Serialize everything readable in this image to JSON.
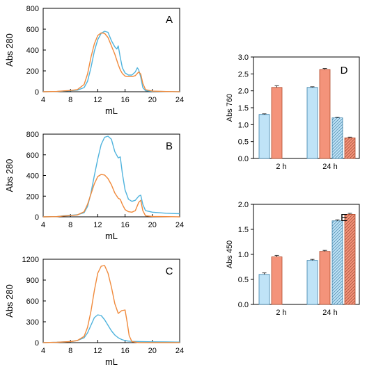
{
  "colors": {
    "blue": "#4fb3dd",
    "orange": "#f08a3c",
    "bar_blue": "#bfe3f7",
    "bar_orange": "#f4937a",
    "axis": "#000000",
    "grid": "#000000"
  },
  "chart_data": [
    {
      "id": "A",
      "type": "line",
      "panel_label": "A",
      "xlabel": "mL",
      "ylabel": "Abs 280",
      "xlim": [
        4,
        24
      ],
      "ylim": [
        0,
        800
      ],
      "xticks": [
        4,
        8,
        12,
        16,
        20,
        24
      ],
      "yticks": [
        0,
        200,
        400,
        600,
        800
      ],
      "series": [
        {
          "color": "blue",
          "x": [
            4,
            6,
            7,
            8,
            9,
            10,
            10.5,
            11,
            11.5,
            12,
            12.5,
            13,
            13.5,
            14,
            14.5,
            14.8,
            15,
            15.3,
            15.6,
            16,
            16.5,
            17,
            17.5,
            17.8,
            18,
            18.3,
            18.6,
            19,
            20,
            22,
            24
          ],
          "y": [
            0,
            2,
            6,
            10,
            15,
            40,
            100,
            230,
            390,
            500,
            560,
            580,
            570,
            490,
            430,
            410,
            440,
            330,
            230,
            180,
            160,
            160,
            190,
            230,
            210,
            140,
            40,
            10,
            4,
            2,
            0
          ]
        },
        {
          "color": "orange",
          "x": [
            4,
            6,
            7,
            8,
            9,
            10,
            10.5,
            11,
            11.5,
            12,
            12.5,
            13,
            13.5,
            14,
            14.5,
            15,
            15.3,
            15.6,
            16,
            16.5,
            17,
            17.5,
            18,
            18.3,
            18.6,
            19,
            20,
            22,
            24
          ],
          "y": [
            0,
            3,
            8,
            12,
            20,
            70,
            170,
            330,
            460,
            540,
            565,
            560,
            520,
            440,
            360,
            260,
            210,
            175,
            150,
            145,
            145,
            155,
            190,
            170,
            80,
            20,
            6,
            2,
            0
          ]
        }
      ]
    },
    {
      "id": "B",
      "type": "line",
      "panel_label": "B",
      "xlabel": "mL",
      "ylabel": "Abs 280",
      "xlim": [
        4,
        24
      ],
      "ylim": [
        0,
        800
      ],
      "xticks": [
        4,
        8,
        12,
        16,
        20,
        24
      ],
      "yticks": [
        0,
        200,
        400,
        600,
        800
      ],
      "series": [
        {
          "color": "blue",
          "x": [
            4,
            6,
            7,
            8,
            9,
            10,
            10.5,
            11,
            11.5,
            12,
            12.5,
            13,
            13.5,
            14,
            14.5,
            15,
            15.3,
            15.6,
            16,
            16.5,
            17,
            17.5,
            18,
            18.3,
            18.6,
            19,
            20,
            22,
            24
          ],
          "y": [
            0,
            2,
            10,
            15,
            20,
            40,
            100,
            230,
            400,
            560,
            700,
            770,
            780,
            750,
            630,
            570,
            580,
            420,
            260,
            170,
            150,
            160,
            200,
            210,
            120,
            60,
            45,
            35,
            30
          ]
        },
        {
          "color": "orange",
          "x": [
            4,
            6,
            7,
            8,
            9,
            10,
            10.5,
            11,
            11.5,
            12,
            12.5,
            13,
            13.5,
            14,
            14.5,
            15,
            15.3,
            15.6,
            16,
            16.5,
            17,
            17.5,
            18,
            18.3,
            18.6,
            19,
            20,
            22,
            24
          ],
          "y": [
            0,
            2,
            8,
            12,
            18,
            50,
            120,
            220,
            320,
            390,
            410,
            405,
            370,
            310,
            230,
            180,
            170,
            120,
            70,
            50,
            45,
            60,
            140,
            160,
            60,
            10,
            4,
            2,
            0
          ]
        }
      ]
    },
    {
      "id": "C",
      "type": "line",
      "panel_label": "C",
      "xlabel": "mL",
      "ylabel": "Abs 280",
      "xlim": [
        4,
        24
      ],
      "ylim": [
        0,
        1200
      ],
      "xticks": [
        4,
        8,
        12,
        16,
        20,
        24
      ],
      "yticks": [
        0,
        300,
        600,
        900,
        1200
      ],
      "series": [
        {
          "color": "blue",
          "x": [
            4,
            6,
            8,
            9,
            10,
            10.5,
            11,
            11.5,
            12,
            12.5,
            13,
            13.5,
            14,
            14.5,
            15,
            15.5,
            16,
            16.5,
            17,
            18,
            20,
            22,
            24
          ],
          "y": [
            0,
            5,
            15,
            30,
            70,
            140,
            250,
            360,
            400,
            390,
            330,
            250,
            170,
            110,
            70,
            45,
            30,
            22,
            18,
            15,
            12,
            10,
            8
          ]
        },
        {
          "color": "orange",
          "x": [
            4,
            6,
            8,
            9,
            10,
            10.5,
            11,
            11.5,
            12,
            12.5,
            13,
            13.5,
            14,
            14.5,
            15,
            15.5,
            16,
            16.3,
            16.6,
            17,
            18,
            20,
            24
          ],
          "y": [
            0,
            5,
            15,
            30,
            90,
            220,
            450,
            750,
            1000,
            1100,
            1110,
            1000,
            800,
            560,
            420,
            460,
            470,
            300,
            100,
            15,
            0,
            0,
            0
          ]
        }
      ]
    },
    {
      "id": "D",
      "type": "bar",
      "panel_label": "D",
      "ylabel": "Abs 760",
      "ylim": [
        0,
        3.0
      ],
      "yticks": [
        "0.0",
        "0.5",
        "1.0",
        "1.5",
        "2.0",
        "2.5",
        "3.0"
      ],
      "categories": [
        "2 h",
        "24 h"
      ],
      "bars": [
        {
          "group": "2 h",
          "style": "blue",
          "value": 1.3,
          "error": 0.02
        },
        {
          "group": "2 h",
          "style": "orange",
          "value": 2.1,
          "error": 0.05
        },
        {
          "group": "24 h",
          "style": "blue",
          "value": 2.1,
          "error": 0.02
        },
        {
          "group": "24 h",
          "style": "orange",
          "value": 2.63,
          "error": 0.03
        },
        {
          "group": "24 h",
          "style": "blue-hatched",
          "value": 1.2,
          "error": 0.02
        },
        {
          "group": "24 h",
          "style": "orange-hatched",
          "value": 0.61,
          "error": 0.02
        }
      ]
    },
    {
      "id": "E",
      "type": "bar",
      "panel_label": "E",
      "ylabel": "Abs 450",
      "ylim": [
        0,
        2.0
      ],
      "yticks": [
        "0.0",
        "0.5",
        "1.0",
        "1.5",
        "2.0"
      ],
      "categories": [
        "2 h",
        "24 h"
      ],
      "bars": [
        {
          "group": "2 h",
          "style": "blue",
          "value": 0.6,
          "error": 0.03
        },
        {
          "group": "2 h",
          "style": "orange",
          "value": 0.95,
          "error": 0.03
        },
        {
          "group": "24 h",
          "style": "blue",
          "value": 0.88,
          "error": 0.02
        },
        {
          "group": "24 h",
          "style": "orange",
          "value": 1.06,
          "error": 0.02
        },
        {
          "group": "24 h",
          "style": "blue-hatched",
          "value": 1.67,
          "error": 0.02
        },
        {
          "group": "24 h",
          "style": "orange-hatched",
          "value": 1.8,
          "error": 0.02
        }
      ]
    }
  ]
}
